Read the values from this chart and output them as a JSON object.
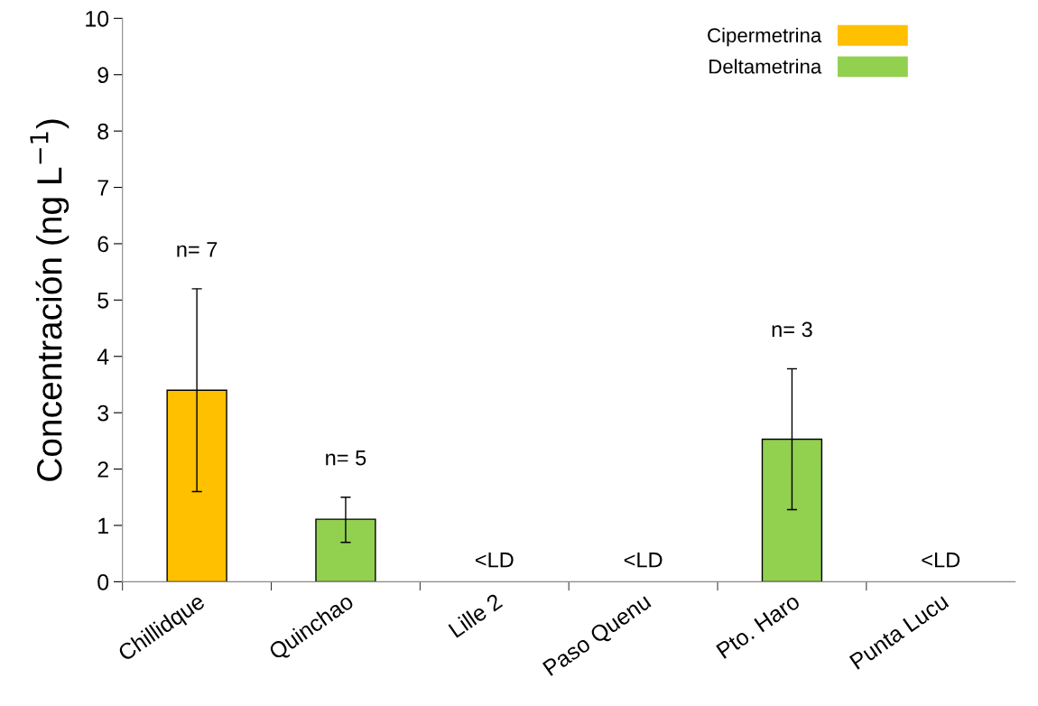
{
  "chart_data": {
    "type": "bar",
    "stacked": true,
    "ylabel": "Concentración (ng L$^{−1}$)",
    "categories": [
      "Chillidque",
      "Quinchao",
      "Lille 2",
      "Paso Quenu",
      "Pto. Haro",
      "Punta Lucu"
    ],
    "series": [
      {
        "name": "Cipermetrina",
        "color": "#ffc000",
        "values": [
          3.4,
          null,
          null,
          null,
          null,
          null
        ],
        "errors": [
          [
            1.6,
            5.2
          ],
          null,
          null,
          null,
          null,
          null
        ]
      },
      {
        "name": "Deltametrina",
        "color": "#92d050",
        "values": [
          null,
          1.11,
          null,
          null,
          2.53,
          null
        ],
        "errors": [
          null,
          [
            0.7,
            1.5
          ],
          null,
          null,
          [
            1.28,
            3.78
          ],
          null
        ]
      }
    ],
    "ylim": [
      0,
      10
    ],
    "yticks": [
      0,
      1,
      2,
      3,
      4,
      5,
      6,
      7,
      8,
      9,
      10
    ],
    "grid": false,
    "legend": "top right",
    "annotations": [
      "n= 7",
      "n= 5",
      "<LD",
      "<LD",
      "n= 3",
      "<LD"
    ]
  }
}
